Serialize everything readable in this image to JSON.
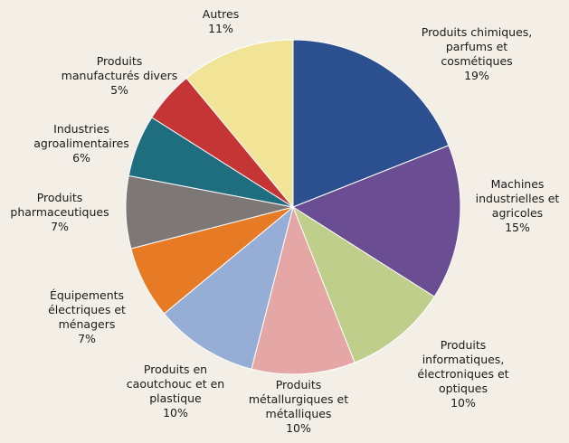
{
  "chart_data": {
    "type": "pie",
    "start_angle_deg": 0,
    "direction": "clockwise",
    "slices": [
      {
        "label": "Produits chimiques, parfums et cosmétiques",
        "label_lines": [
          "Produits chimiques,",
          "parfums et",
          "cosmétiques",
          "19%"
        ],
        "value": 19,
        "color": "#2c4f8f"
      },
      {
        "label": "Machines industrielles et agricoles",
        "label_lines": [
          "Machines",
          "industrielles et",
          "agricoles",
          "15%"
        ],
        "value": 15,
        "color": "#6a4d93"
      },
      {
        "label": "Produits informatiques, électroniques et optiques",
        "label_lines": [
          "Produits",
          "informatiques,",
          "électroniques et",
          "optiques",
          "10%"
        ],
        "value": 10,
        "color": "#c0ce8c"
      },
      {
        "label": "Produits métallurgiques et métalliques",
        "label_lines": [
          "Produits",
          "métallurgiques et",
          "métalliques",
          "10%"
        ],
        "value": 10,
        "color": "#e5a7a5"
      },
      {
        "label": "Produits en caoutchouc et en plastique",
        "label_lines": [
          "Produits en",
          "caoutchouc et en",
          "plastique",
          "10%"
        ],
        "value": 10,
        "color": "#96aed6"
      },
      {
        "label": "Équipements électriques et ménagers",
        "label_lines": [
          "Équipements",
          "électriques et",
          "ménagers",
          "7%"
        ],
        "value": 7,
        "color": "#e67a25"
      },
      {
        "label": "Produits pharmaceutiques",
        "label_lines": [
          "Produits",
          "pharmaceutiques",
          "7%"
        ],
        "value": 7,
        "color": "#7d7776"
      },
      {
        "label": "Industries agroalimentaires",
        "label_lines": [
          "Industries",
          "agroalimentaires",
          "6%"
        ],
        "value": 6,
        "color": "#1e6e80"
      },
      {
        "label": "Produits manufacturés divers",
        "label_lines": [
          "Produits",
          "manufacturés divers",
          "5%"
        ],
        "value": 5,
        "color": "#c53535"
      },
      {
        "label": "Autres",
        "label_lines": [
          "Autres",
          "11%"
        ],
        "value": 11,
        "color": "#f2e497"
      }
    ]
  }
}
